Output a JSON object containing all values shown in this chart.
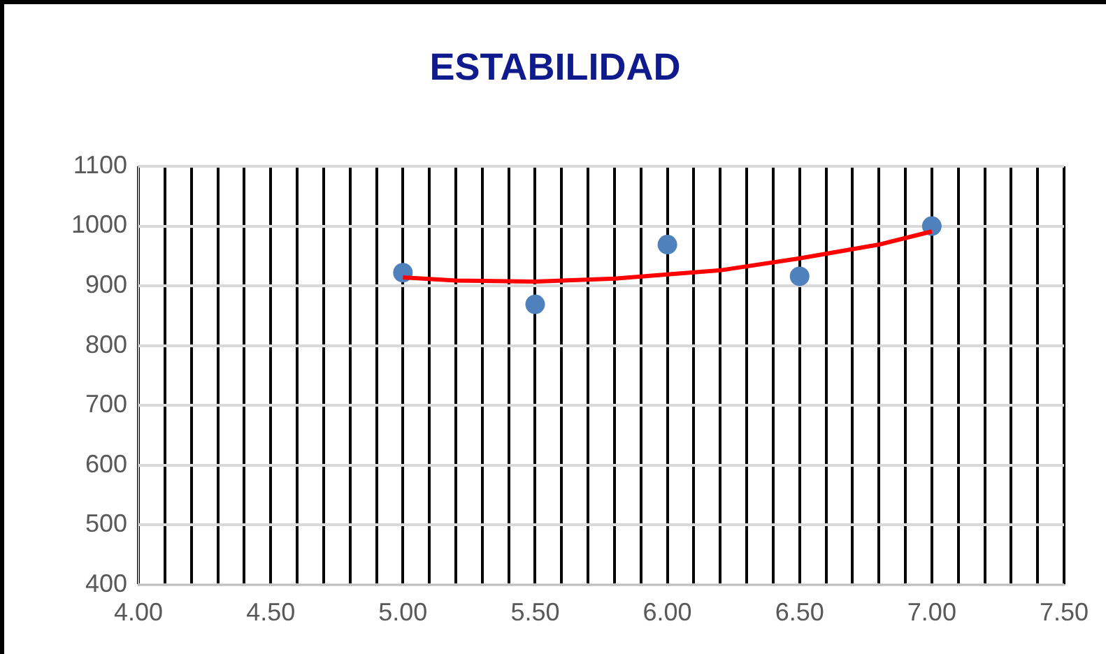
{
  "chart_data": {
    "type": "scatter",
    "title": "ESTABILIDAD",
    "xlim": [
      4,
      7.5
    ],
    "xticks": [
      {
        "value": 4,
        "label": "4.00"
      },
      {
        "value": 4.1,
        "label": null
      },
      {
        "value": 4.2,
        "label": null
      },
      {
        "value": 4.3,
        "label": null
      },
      {
        "value": 4.4,
        "label": null
      },
      {
        "value": 4.5,
        "label": "4.50"
      },
      {
        "value": 4.6,
        "label": null
      },
      {
        "value": 4.7,
        "label": null
      },
      {
        "value": 4.8,
        "label": null
      },
      {
        "value": 4.9,
        "label": null
      },
      {
        "value": 5,
        "label": "5.00"
      },
      {
        "value": 5.1,
        "label": null
      },
      {
        "value": 5.2,
        "label": null
      },
      {
        "value": 5.3,
        "label": null
      },
      {
        "value": 5.4,
        "label": null
      },
      {
        "value": 5.5,
        "label": "5.50"
      },
      {
        "value": 5.6,
        "label": null
      },
      {
        "value": 5.7,
        "label": null
      },
      {
        "value": 5.8,
        "label": null
      },
      {
        "value": 5.9,
        "label": null
      },
      {
        "value": 6,
        "label": "6.00"
      },
      {
        "value": 6.1,
        "label": null
      },
      {
        "value": 6.2,
        "label": null
      },
      {
        "value": 6.3,
        "label": null
      },
      {
        "value": 6.4,
        "label": null
      },
      {
        "value": 6.5,
        "label": "6.50"
      },
      {
        "value": 6.6,
        "label": null
      },
      {
        "value": 6.7,
        "label": null
      },
      {
        "value": 6.8,
        "label": null
      },
      {
        "value": 6.9,
        "label": null
      },
      {
        "value": 7,
        "label": "7.00"
      },
      {
        "value": 7.1,
        "label": null
      },
      {
        "value": 7.2,
        "label": null
      },
      {
        "value": 7.3,
        "label": null
      },
      {
        "value": 7.4,
        "label": null
      },
      {
        "value": 7.5,
        "label": "7.50"
      }
    ],
    "ylim": [
      400,
      1100
    ],
    "yticks": [
      400,
      500,
      600,
      700,
      800,
      900,
      1000,
      1100
    ],
    "grid": true,
    "series": [
      {
        "marker": "circle",
        "color": "#4f81bd",
        "x": [
          5,
          5.5,
          6,
          6.5,
          7
        ],
        "values": [
          922,
          869,
          969,
          916,
          1000
        ]
      },
      {
        "type": "line",
        "marker": "none",
        "line_style": "solid",
        "color": "#ff0000",
        "x": [
          5,
          5.2,
          5.5,
          5.8,
          6,
          6.2,
          6.5,
          6.8,
          7
        ],
        "values": [
          914,
          909,
          907,
          912,
          919,
          926,
          946,
          969,
          991
        ]
      }
    ]
  }
}
